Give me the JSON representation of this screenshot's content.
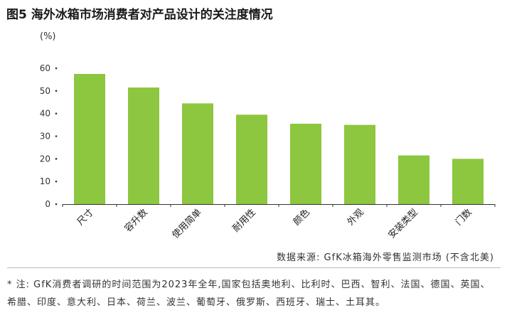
{
  "title": "图5 海外冰箱市场消费者对产品设计的关注度情况",
  "unit": "(%)",
  "source": "数据来源: GfK冰箱海外零售监测市场 (不含北美)",
  "note": "* 注: GfK消费者调研的时间范围为2023年全年,国家包括奥地利、比利时、巴西、智利、法国、德国、英国、希腊、印度、意大利、日本、荷兰、波兰、葡萄牙、俄罗斯、西班牙、瑞士、土耳其。",
  "colors": {
    "bar": "#8dc63f",
    "axis": "#333333"
  },
  "chart_data": {
    "type": "bar",
    "categories": [
      "尺寸",
      "容升数",
      "使用简单",
      "耐用性",
      "颜色",
      "外观",
      "安装类型",
      "门数"
    ],
    "values": [
      57.5,
      51.5,
      44.5,
      39.5,
      35.5,
      35,
      21.5,
      20
    ],
    "ylim": [
      0,
      60
    ],
    "yticks": [
      0,
      10,
      20,
      30,
      40,
      50,
      60
    ],
    "ylabel": "(%)",
    "grid": false,
    "legend": "none"
  }
}
